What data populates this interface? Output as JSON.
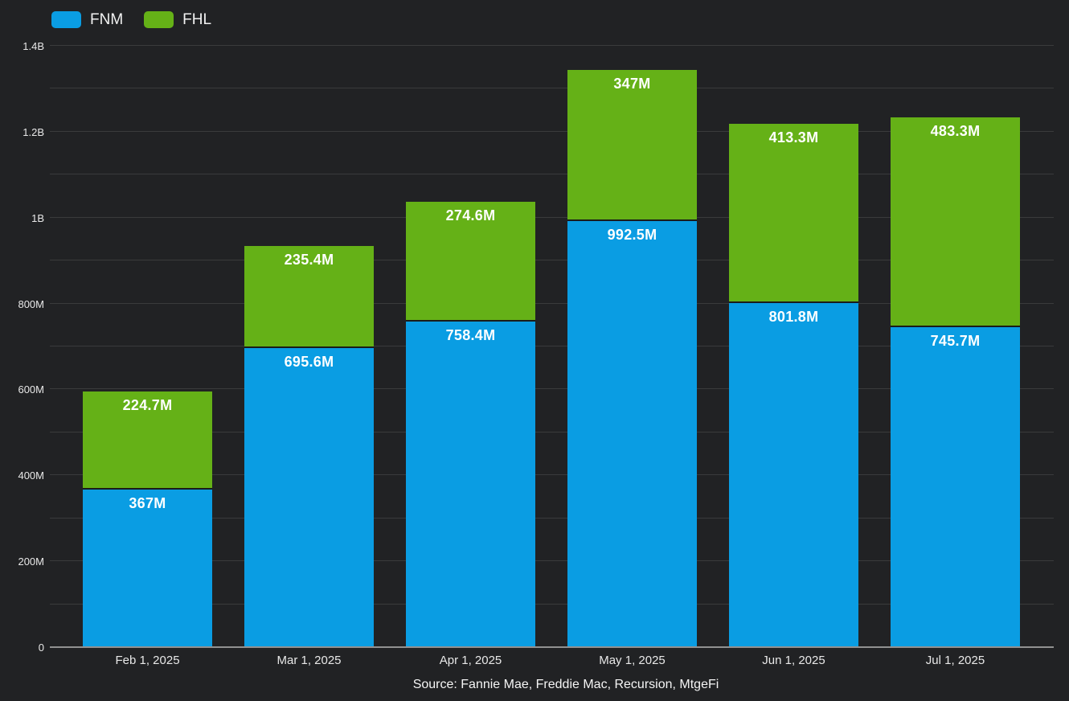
{
  "chart_data": {
    "type": "bar",
    "stacked": true,
    "title": "",
    "categories": [
      "Feb 1, 2025",
      "Mar 1, 2025",
      "Apr 1, 2025",
      "May 1, 2025",
      "Jun 1, 2025",
      "Jul 1, 2025"
    ],
    "series": [
      {
        "name": "FNM",
        "color": "#0a9de3",
        "values": [
          367,
          695.6,
          758.4,
          992.5,
          801.8,
          745.7
        ],
        "labels": [
          "367M",
          "695.6M",
          "758.4M",
          "992.5M",
          "801.8M",
          "745.7M"
        ]
      },
      {
        "name": "FHL",
        "color": "#65b117",
        "values": [
          224.7,
          235.4,
          274.6,
          347,
          413.3,
          483.3
        ],
        "labels": [
          "224.7M",
          "235.4M",
          "274.6M",
          "347M",
          "413.3M",
          "483.3M"
        ]
      }
    ],
    "unit": "millions",
    "ylim": [
      0,
      1400
    ],
    "yticks": [
      {
        "value": 0,
        "label": "0"
      },
      {
        "value": 200,
        "label": "200M"
      },
      {
        "value": 400,
        "label": "400M"
      },
      {
        "value": 600,
        "label": "600M"
      },
      {
        "value": 800,
        "label": "800M"
      },
      {
        "value": 1000,
        "label": "1B"
      },
      {
        "value": 1200,
        "label": "1.2B"
      },
      {
        "value": 1400,
        "label": "1.4B"
      }
    ],
    "minor_grid_interval": 100,
    "grid": true,
    "legend_position": "top-left",
    "xlabel": "",
    "ylabel": ""
  },
  "source": "Source: Fannie Mae, Freddie Mac, Recursion, MtgeFi",
  "colors": {
    "background": "#212224",
    "gridline": "#3a3b3c",
    "axis_line": "#919191",
    "tick_text": "#e8e8e8",
    "value_label_text": "#ffffff",
    "fnm_blue": "#0a9de3",
    "fhl_green": "#65b117"
  }
}
